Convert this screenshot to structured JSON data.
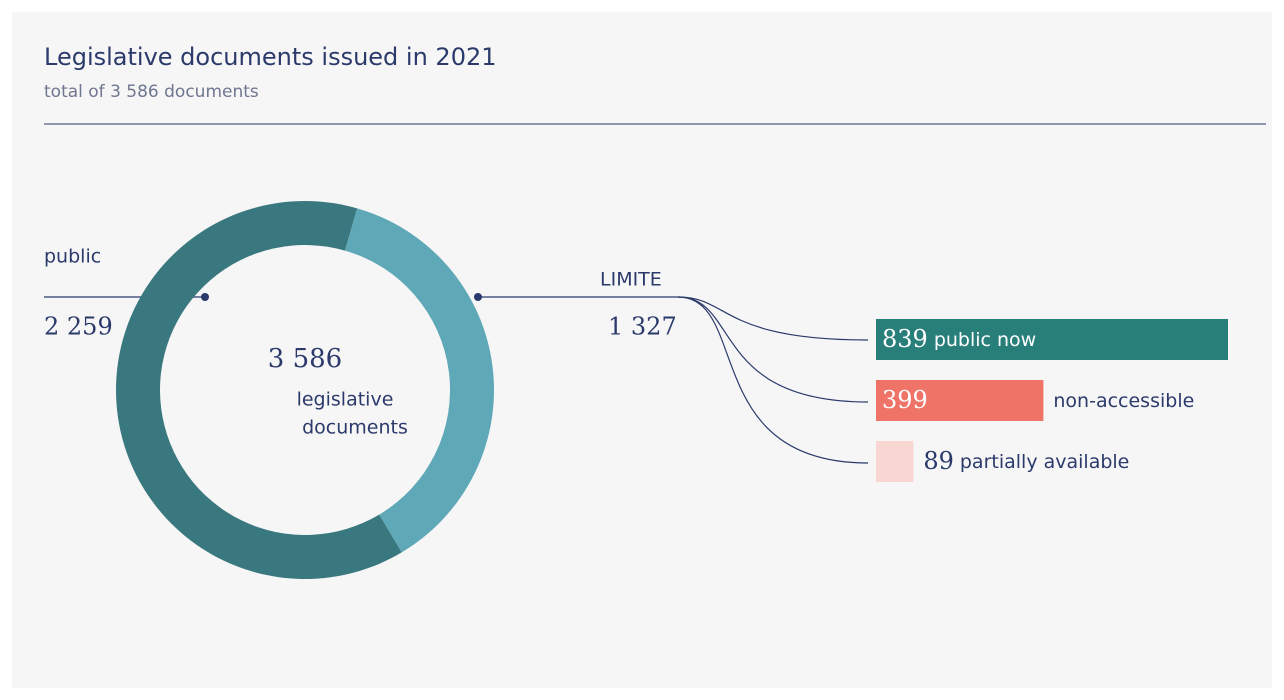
{
  "chart_data": [
    {
      "type": "donut",
      "title": "Legislative documents issued in 2021",
      "subtitle": "total of 3 586 documents",
      "center_value": 3586,
      "center_value_label": "3 586",
      "center_text": [
        "legislative",
        "documents"
      ],
      "categories": [
        "public",
        "LIMITE"
      ],
      "values": [
        2259,
        1327
      ],
      "value_labels": [
        "2 259",
        "1 327"
      ],
      "colors": [
        "#3a7880",
        "#5fa8b8"
      ]
    },
    {
      "type": "bar",
      "categories": [
        "public now",
        "non-accessible",
        "partially available"
      ],
      "values": [
        839,
        399,
        89
      ],
      "colors": [
        "#287f7a",
        "#f07368",
        "#f9d6d1"
      ]
    }
  ]
}
